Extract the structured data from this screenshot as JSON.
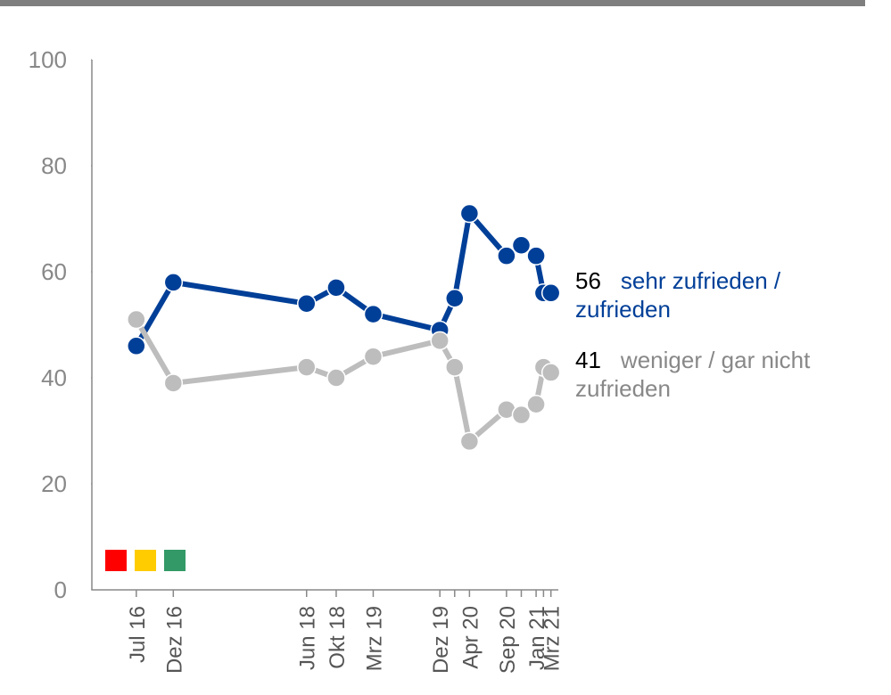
{
  "chart_data": {
    "type": "line",
    "x": [
      "2016-07",
      "2016-12",
      "2018-06",
      "2018-10",
      "2019-03",
      "2019-12",
      "2020-02",
      "2020-04",
      "2020-09",
      "2020-11",
      "2021-01",
      "2021-02",
      "2021-03"
    ],
    "series": [
      {
        "name": "sehr zufrieden / zufrieden",
        "color": "#003f98",
        "values": [
          46,
          58,
          54,
          57,
          52,
          49,
          55,
          71,
          63,
          65,
          63,
          56,
          56
        ]
      },
      {
        "name": "weniger / gar nicht zufrieden",
        "color": "#bdbdbd",
        "values": [
          51,
          39,
          42,
          40,
          44,
          47,
          42,
          28,
          34,
          33,
          35,
          42,
          41
        ]
      }
    ],
    "xlim": [
      "2016-01",
      "2021-04"
    ],
    "xticks": [
      {
        "value": "2016-07",
        "label": "Jul 16"
      },
      {
        "value": "2016-12",
        "label": "Dez 16"
      },
      {
        "value": "2018-06",
        "label": "Jun 18"
      },
      {
        "value": "2018-10",
        "label": "Okt 18"
      },
      {
        "value": "2019-03",
        "label": "Mrz 19"
      },
      {
        "value": "2019-12",
        "label": "Dez 19"
      },
      {
        "value": "2020-02"
      },
      {
        "value": "2020-04",
        "label": "Apr 20"
      },
      {
        "value": "2020-09",
        "label": "Sep 20"
      },
      {
        "value": "2020-11"
      },
      {
        "value": "2021-01",
        "label": "Jan 21"
      },
      {
        "value": "2021-02"
      },
      {
        "value": "2021-03",
        "label": "Mrz 21"
      }
    ],
    "ylim": [
      0,
      100
    ],
    "yticks": [
      0,
      20,
      40,
      60,
      80,
      100
    ]
  }
}
